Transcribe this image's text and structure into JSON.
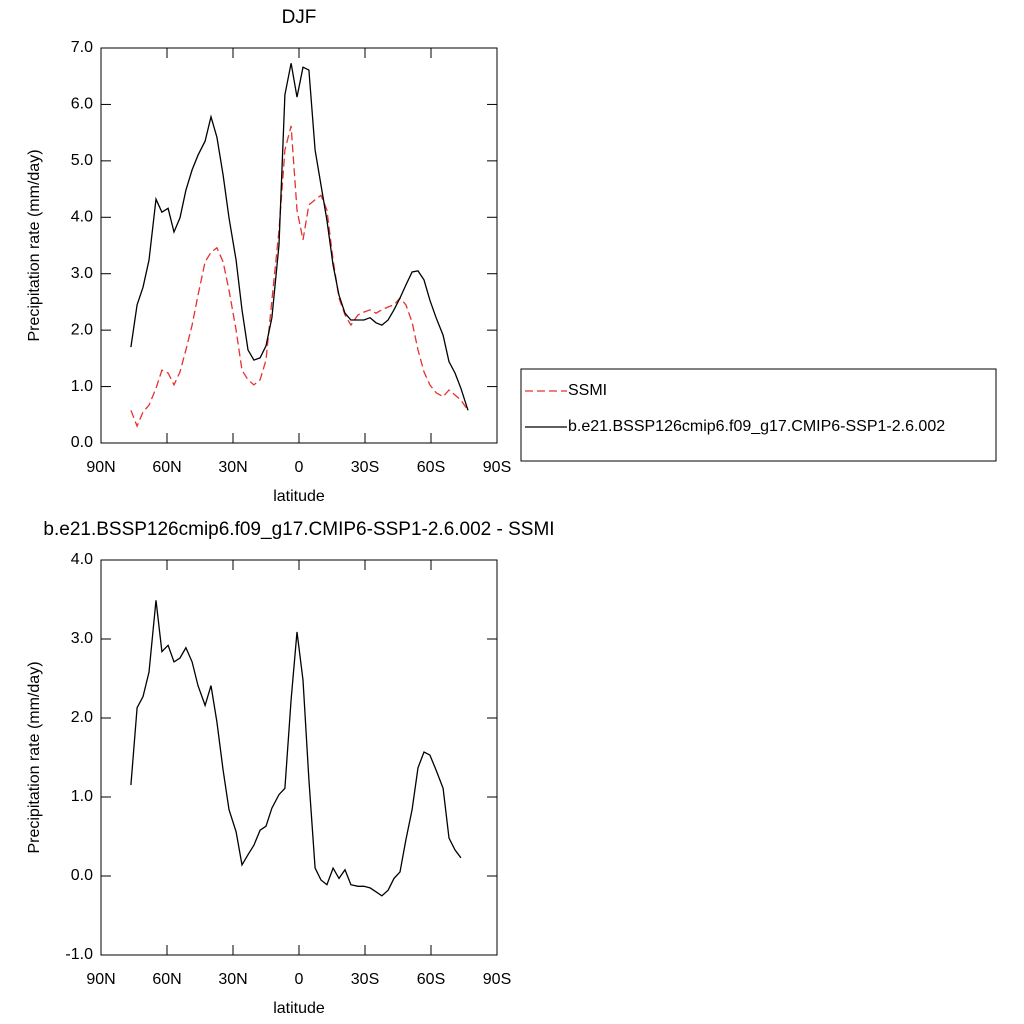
{
  "chart_data": [
    {
      "type": "line",
      "title": "DJF",
      "xlabel": "latitude",
      "ylabel": "Precipitation rate (mm/day)",
      "x": [
        76.4,
        73.6,
        70.9,
        68.2,
        65,
        62.3,
        59.5,
        56.8,
        54.1,
        51.4,
        48.6,
        45.9,
        42.7,
        40,
        37.3,
        34.5,
        31.8,
        28.6,
        25.9,
        23.2,
        20.5,
        17.7,
        15,
        12.3,
        9.1,
        6.4,
        3.6,
        0.9,
        -1.8,
        -4.5,
        -7.3,
        -10,
        -12.7,
        -15.5,
        -18.2,
        -20.9,
        -23.6,
        -26.8,
        -29.5,
        -32.3,
        -35,
        -37.7,
        -40.5,
        -43.2,
        -45.9,
        -48.6,
        -51.4,
        -54.1,
        -56.8,
        -59.5,
        -62.3,
        -65.5,
        -68.2,
        -70.9,
        -73.6,
        -76.8
      ],
      "series": [
        {
          "name": "SSMI",
          "color": "#e8302f",
          "line_style": "dashed",
          "values": [
            0.58,
            0.3,
            0.55,
            0.67,
            0.97,
            1.29,
            1.24,
            1.03,
            1.26,
            1.65,
            2.09,
            2.62,
            3.21,
            3.38,
            3.46,
            3.21,
            2.71,
            2.0,
            1.29,
            1.12,
            1.03,
            1.12,
            1.47,
            2.53,
            3.77,
            5.19,
            5.62,
            4.13,
            3.6,
            4.22,
            4.31,
            4.39,
            4.13,
            3.24,
            2.57,
            2.27,
            2.09,
            2.27,
            2.32,
            2.36,
            2.3,
            2.36,
            2.41,
            2.45,
            2.57,
            2.45,
            2.14,
            1.65,
            1.26,
            1.03,
            0.89,
            0.82,
            0.94,
            0.85,
            0.76,
            0.58
          ]
        },
        {
          "name": "b.e21.BSSP126cmip6.f09_g17.CMIP6-SSP1-2.6.002",
          "color": "#000000",
          "line_style": "solid",
          "values": [
            1.7,
            2.45,
            2.76,
            3.24,
            4.32,
            4.09,
            4.16,
            3.74,
            3.99,
            4.48,
            4.84,
            5.1,
            5.35,
            5.78,
            5.42,
            4.75,
            3.99,
            3.24,
            2.36,
            1.65,
            1.47,
            1.51,
            1.72,
            2.22,
            3.51,
            6.17,
            6.73,
            6.13,
            6.66,
            6.61,
            5.19,
            4.57,
            3.95,
            3.15,
            2.62,
            2.3,
            2.18,
            2.18,
            2.18,
            2.22,
            2.13,
            2.09,
            2.18,
            2.36,
            2.57,
            2.8,
            3.03,
            3.05,
            2.89,
            2.53,
            2.22,
            1.91,
            1.44,
            1.24,
            0.97,
            0.58
          ]
        }
      ],
      "xlim": [
        90,
        -90
      ],
      "xticks": [
        {
          "value": 90,
          "label": "90N"
        },
        {
          "value": 60,
          "label": "60N"
        },
        {
          "value": 30,
          "label": "30N"
        },
        0,
        {
          "value": -30,
          "label": "30S"
        },
        {
          "value": -60,
          "label": "60S"
        },
        {
          "value": -90,
          "label": "90S"
        }
      ],
      "ylim": [
        0,
        7
      ],
      "yticks": [
        {
          "value": 0,
          "label": "0.0"
        },
        {
          "value": 1,
          "label": "1.0"
        },
        {
          "value": 2,
          "label": "2.0"
        },
        {
          "value": 3,
          "label": "3.0"
        },
        {
          "value": 4,
          "label": "4.0"
        },
        {
          "value": 5,
          "label": "5.0"
        },
        {
          "value": 6,
          "label": "6.0"
        },
        {
          "value": 7,
          "label": "7.0"
        }
      ],
      "legend": "right"
    },
    {
      "type": "line",
      "title": "b.e21.BSSP126cmip6.f09_g17.CMIP6-SSP1-2.6.002 - SSMI",
      "xlabel": "latitude",
      "ylabel": "Precipitation rate (mm/day)",
      "x": [
        76.4,
        73.6,
        70.9,
        68.2,
        65,
        62.3,
        59.5,
        56.8,
        54.1,
        51.4,
        48.6,
        45.9,
        42.7,
        40,
        37.3,
        34.5,
        31.8,
        28.6,
        25.9,
        23.2,
        20.5,
        17.7,
        15,
        12.3,
        9.1,
        6.4,
        3.6,
        0.9,
        -1.8,
        -4.5,
        -7.3,
        -10,
        -12.7,
        -15.5,
        -18.2,
        -20.9,
        -23.6,
        -26.8,
        -29.5,
        -32.3,
        -35,
        -37.7,
        -40.5,
        -43.2,
        -45.9,
        -48.6,
        -51.4,
        -54.1,
        -56.8,
        -59.5,
        -62.3,
        -65.5,
        -68.2,
        -70.9,
        -73.6
      ],
      "series": [
        {
          "color": "#000000",
          "line_style": "solid",
          "values": [
            1.15,
            2.13,
            2.27,
            2.58,
            3.49,
            2.84,
            2.92,
            2.71,
            2.76,
            2.89,
            2.71,
            2.41,
            2.16,
            2.41,
            1.95,
            1.34,
            0.84,
            0.56,
            0.14,
            0.27,
            0.39,
            0.58,
            0.63,
            0.86,
            1.03,
            1.11,
            2.23,
            3.09,
            2.48,
            1.22,
            0.1,
            -0.05,
            -0.11,
            0.1,
            -0.03,
            0.08,
            -0.11,
            -0.13,
            -0.13,
            -0.15,
            -0.2,
            -0.25,
            -0.18,
            -0.03,
            0.05,
            0.46,
            0.84,
            1.37,
            1.57,
            1.53,
            1.34,
            1.11,
            0.48,
            0.33,
            0.23
          ]
        }
      ],
      "xlim": [
        90,
        -90
      ],
      "xticks": [
        {
          "value": 90,
          "label": "90N"
        },
        {
          "value": 60,
          "label": "60N"
        },
        {
          "value": 30,
          "label": "30N"
        },
        0,
        {
          "value": -30,
          "label": "30S"
        },
        {
          "value": -60,
          "label": "60S"
        },
        {
          "value": -90,
          "label": "90S"
        }
      ],
      "ylim": [
        -1,
        4
      ],
      "yticks": [
        {
          "value": -1,
          "label": "-1.0"
        },
        {
          "value": 0,
          "label": "0.0"
        },
        {
          "value": 1,
          "label": "1.0"
        },
        {
          "value": 2,
          "label": "2.0"
        },
        {
          "value": 3,
          "label": "3.0"
        },
        {
          "value": 4,
          "label": "4.0"
        }
      ]
    }
  ]
}
